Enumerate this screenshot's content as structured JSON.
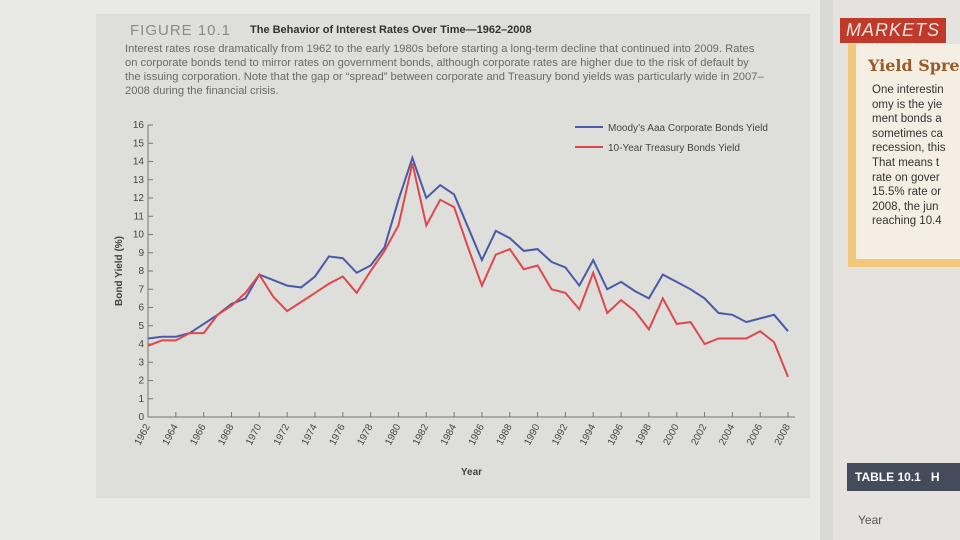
{
  "figure": {
    "label": "FIGURE 10.1",
    "title": "The Behavior of Interest Rates Over Time—1962–2008",
    "caption": "Interest rates rose dramatically from 1962 to the early 1980s before starting a long-term decline that continued into 2009. Rates on corporate bonds tend to mirror rates on government bonds, although corporate rates are higher due to the risk of default by the issuing corporation. Note that the gap or “spread” between corporate and Treasury bond yields was particularly wide in 2007–2008 during the financial crisis."
  },
  "chart_data": {
    "type": "line",
    "x_label": "Year",
    "y_label": "Bond Yield (%)",
    "x": [
      1962,
      1963,
      1964,
      1965,
      1966,
      1967,
      1968,
      1969,
      1970,
      1971,
      1972,
      1973,
      1974,
      1975,
      1976,
      1977,
      1978,
      1979,
      1980,
      1981,
      1982,
      1983,
      1984,
      1985,
      1986,
      1987,
      1988,
      1989,
      1990,
      1991,
      1992,
      1993,
      1994,
      1995,
      1996,
      1997,
      1998,
      1999,
      2000,
      2001,
      2002,
      2003,
      2004,
      2005,
      2006,
      2007,
      2008
    ],
    "series": [
      {
        "name": "Moody’s Aaa Corporate Bonds Yield",
        "color": "#4a5aa8",
        "values": [
          4.3,
          4.4,
          4.4,
          4.6,
          5.1,
          5.6,
          6.2,
          6.5,
          7.8,
          7.5,
          7.2,
          7.1,
          7.7,
          8.8,
          8.7,
          7.9,
          8.3,
          9.3,
          11.9,
          14.2,
          12.0,
          12.7,
          12.2,
          10.4,
          8.6,
          10.2,
          9.8,
          9.1,
          9.2,
          8.5,
          8.2,
          7.2,
          8.6,
          7.0,
          7.4,
          6.9,
          6.5,
          7.8,
          7.4,
          7.0,
          6.5,
          5.7,
          5.6,
          5.2,
          5.4,
          5.6,
          4.7
        ]
      },
      {
        "name": "10-Year Treasury Bonds Yield",
        "color": "#e0474c",
        "values": [
          3.9,
          4.2,
          4.2,
          4.6,
          4.6,
          5.6,
          6.1,
          6.8,
          7.8,
          6.6,
          5.8,
          6.3,
          6.8,
          7.3,
          7.7,
          6.8,
          8.0,
          9.1,
          10.5,
          13.9,
          10.5,
          11.9,
          11.5,
          9.3,
          7.2,
          8.9,
          9.2,
          8.1,
          8.3,
          7.0,
          6.8,
          5.9,
          7.9,
          5.7,
          6.4,
          5.8,
          4.8,
          6.5,
          5.1,
          5.2,
          4.0,
          4.3,
          4.3,
          4.3,
          4.7,
          4.1,
          2.2
        ]
      }
    ],
    "xlim": [
      1962,
      2008.5
    ],
    "xticks": [
      1962,
      1964,
      1966,
      1968,
      1970,
      1972,
      1974,
      1976,
      1978,
      1980,
      1982,
      1984,
      1986,
      1988,
      1990,
      1992,
      1994,
      1996,
      1998,
      2000,
      2002,
      2004,
      2006,
      2008
    ],
    "ylim": [
      0,
      16
    ],
    "yticks": [
      0,
      1,
      2,
      3,
      4,
      5,
      6,
      7,
      8,
      9,
      10,
      11,
      12,
      13,
      14,
      15,
      16
    ],
    "grid": false,
    "legend": "upper right"
  },
  "sidebar": {
    "heading": "MARKETS",
    "subheading": "Yield Spre",
    "lines": [
      "One interestin",
      "omy is the yie",
      "ment bonds a",
      "sometimes ca",
      "recession, this",
      "That means t",
      "rate on gover",
      "15.5% rate or",
      "2008, the jun",
      "reaching 10.4"
    ]
  },
  "table": {
    "label": "TABLE 10.1",
    "title": "H",
    "column": "Year"
  }
}
